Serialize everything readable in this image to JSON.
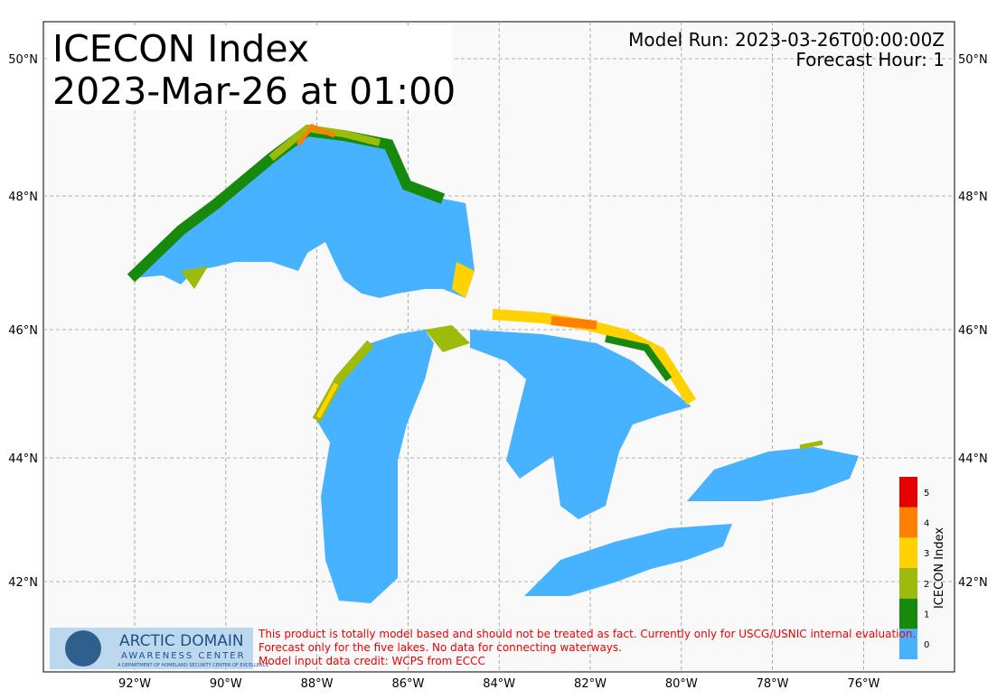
{
  "title": [
    "ICECON Index",
    "2023-Mar-26 at 01:00"
  ],
  "model_run": "Model Run: 2023-03-26T00:00:00Z",
  "forecast_hour": "Forecast Hour: 1",
  "lat_labels": [
    "50°N",
    "48°N",
    "46°N",
    "44°N",
    "42°N"
  ],
  "lon_labels": [
    "92°W",
    "90°W",
    "88°W",
    "86°W",
    "84°W",
    "82°W",
    "80°W",
    "78°W",
    "76°W"
  ],
  "colorbar": {
    "title": "ICECON Index",
    "levels": [
      {
        "label": 0,
        "color": "#47b2ff"
      },
      {
        "label": 1,
        "color": "#178a0e"
      },
      {
        "label": 2,
        "color": "#9cbb0a"
      },
      {
        "label": 3,
        "color": "#ffd200"
      },
      {
        "label": 4,
        "color": "#ff8000"
      },
      {
        "label": 5,
        "color": "#e60000"
      }
    ]
  },
  "logo": {
    "name": "ARCTIC DOMAIN",
    "sub": "AWARENESS CENTER",
    "tag": "A DEPARTMENT OF HOMELAND SECURITY CENTER OF EXCELLENCE"
  },
  "disclaimer": [
    "This product is totally model based and should not be treated as fact. Currently only for USCG/USNIC internal evaluation.",
    "Forecast only for the five lakes. No data for connecting waterways.",
    "Model input data credit: WCPS from ECCC"
  ]
}
